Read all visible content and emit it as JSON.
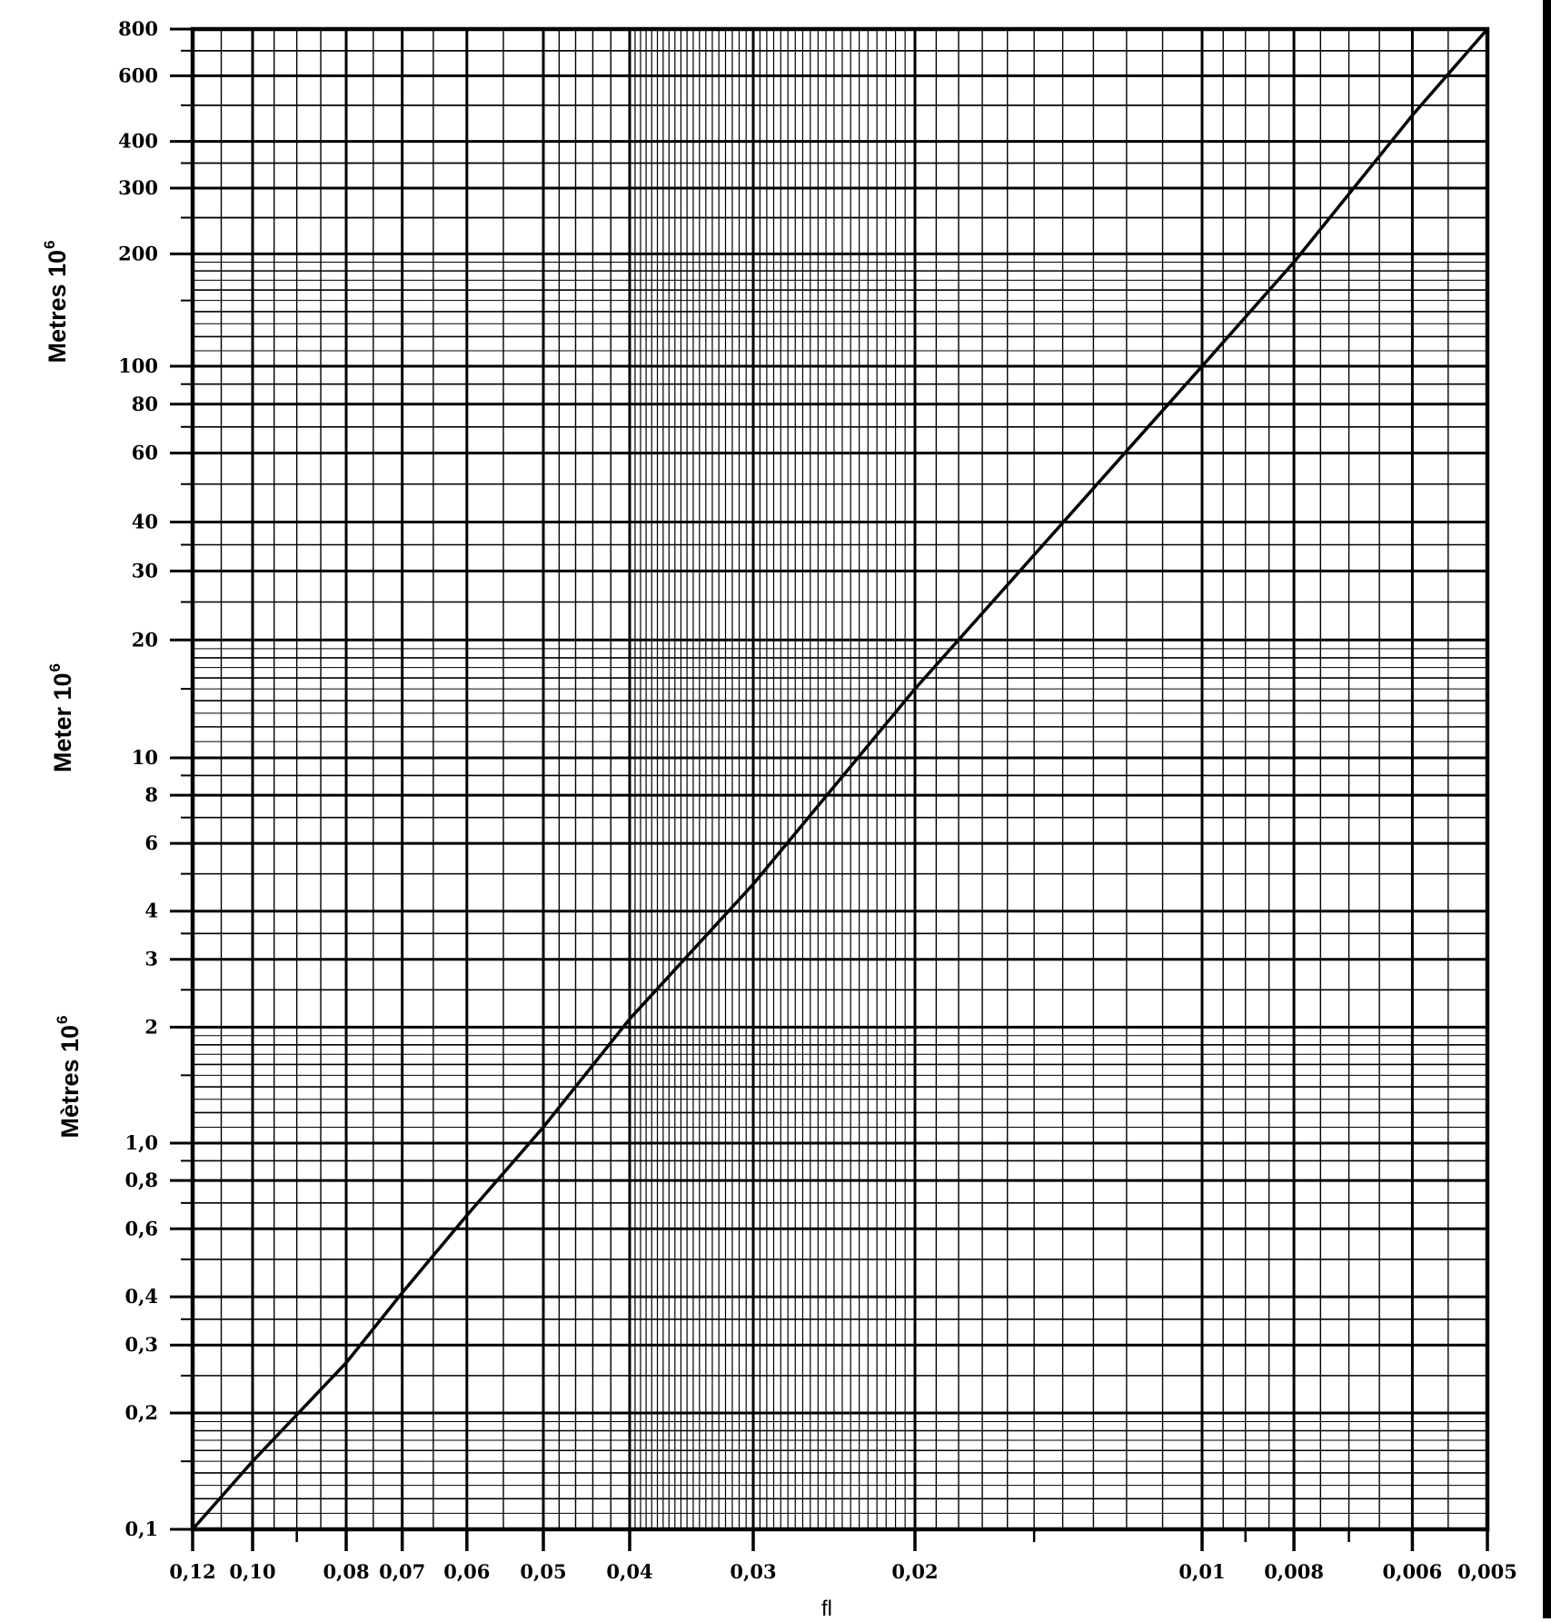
{
  "chart_data": {
    "type": "line",
    "title": "",
    "xlabel": "fl",
    "ylabels": [
      {
        "text": "Metres",
        "exp": "6",
        "lang": "en"
      },
      {
        "text": "Meter",
        "exp": "6",
        "lang": "de"
      },
      {
        "text": "Mètres",
        "exp": "6",
        "lang": "fr"
      }
    ],
    "x_scale": "log (reversed: decreasing left to right)",
    "y_scale": "log",
    "xlim": [
      0.12,
      0.005
    ],
    "ylim": [
      0.1,
      800
    ],
    "grid": true,
    "x_ticks": [
      {
        "value": 0.12,
        "label": "0,12"
      },
      {
        "value": 0.1,
        "label": "0,10"
      },
      {
        "value": 0.08,
        "label": "0,08"
      },
      {
        "value": 0.07,
        "label": "0,07"
      },
      {
        "value": 0.06,
        "label": "0,06"
      },
      {
        "value": 0.05,
        "label": "0,05"
      },
      {
        "value": 0.04,
        "label": "0,04"
      },
      {
        "value": 0.03,
        "label": "0,03"
      },
      {
        "value": 0.02,
        "label": "0,02"
      },
      {
        "value": 0.01,
        "label": "0,01"
      },
      {
        "value": 0.008,
        "label": "0,008"
      },
      {
        "value": 0.006,
        "label": "0,006"
      },
      {
        "value": 0.005,
        "label": "0,005"
      }
    ],
    "y_ticks": [
      {
        "value": 800,
        "label": "800"
      },
      {
        "value": 600,
        "label": "600"
      },
      {
        "value": 400,
        "label": "400"
      },
      {
        "value": 300,
        "label": "300"
      },
      {
        "value": 200,
        "label": "200"
      },
      {
        "value": 100,
        "label": "100"
      },
      {
        "value": 80,
        "label": "80"
      },
      {
        "value": 60,
        "label": "60"
      },
      {
        "value": 40,
        "label": "40"
      },
      {
        "value": 30,
        "label": "30"
      },
      {
        "value": 20,
        "label": "20"
      },
      {
        "value": 10,
        "label": "10"
      },
      {
        "value": 8,
        "label": "8"
      },
      {
        "value": 6,
        "label": "6"
      },
      {
        "value": 4,
        "label": "4"
      },
      {
        "value": 3,
        "label": "3"
      },
      {
        "value": 2,
        "label": "2"
      },
      {
        "value": 1.0,
        "label": "1,0"
      },
      {
        "value": 0.8,
        "label": "0,8"
      },
      {
        "value": 0.6,
        "label": "0,6"
      },
      {
        "value": 0.4,
        "label": "0,4"
      },
      {
        "value": 0.3,
        "label": "0,3"
      },
      {
        "value": 0.2,
        "label": "0,2"
      },
      {
        "value": 0.1,
        "label": "0,1"
      }
    ],
    "series": [
      {
        "name": "fl vs Metres 10^6",
        "x": [
          0.12,
          0.1,
          0.08,
          0.07,
          0.06,
          0.05,
          0.04,
          0.03,
          0.02,
          0.01,
          0.008,
          0.006,
          0.005
        ],
        "y": [
          0.1,
          0.15,
          0.27,
          0.41,
          0.65,
          1.1,
          2.1,
          4.7,
          15,
          100,
          190,
          470,
          800
        ]
      }
    ]
  },
  "labels": {
    "x_title": "fl",
    "y_title_en": "Metres 10",
    "y_title_de": "Meter 10",
    "y_title_fr": "Mètres 10",
    "y_title_exp": "6"
  }
}
